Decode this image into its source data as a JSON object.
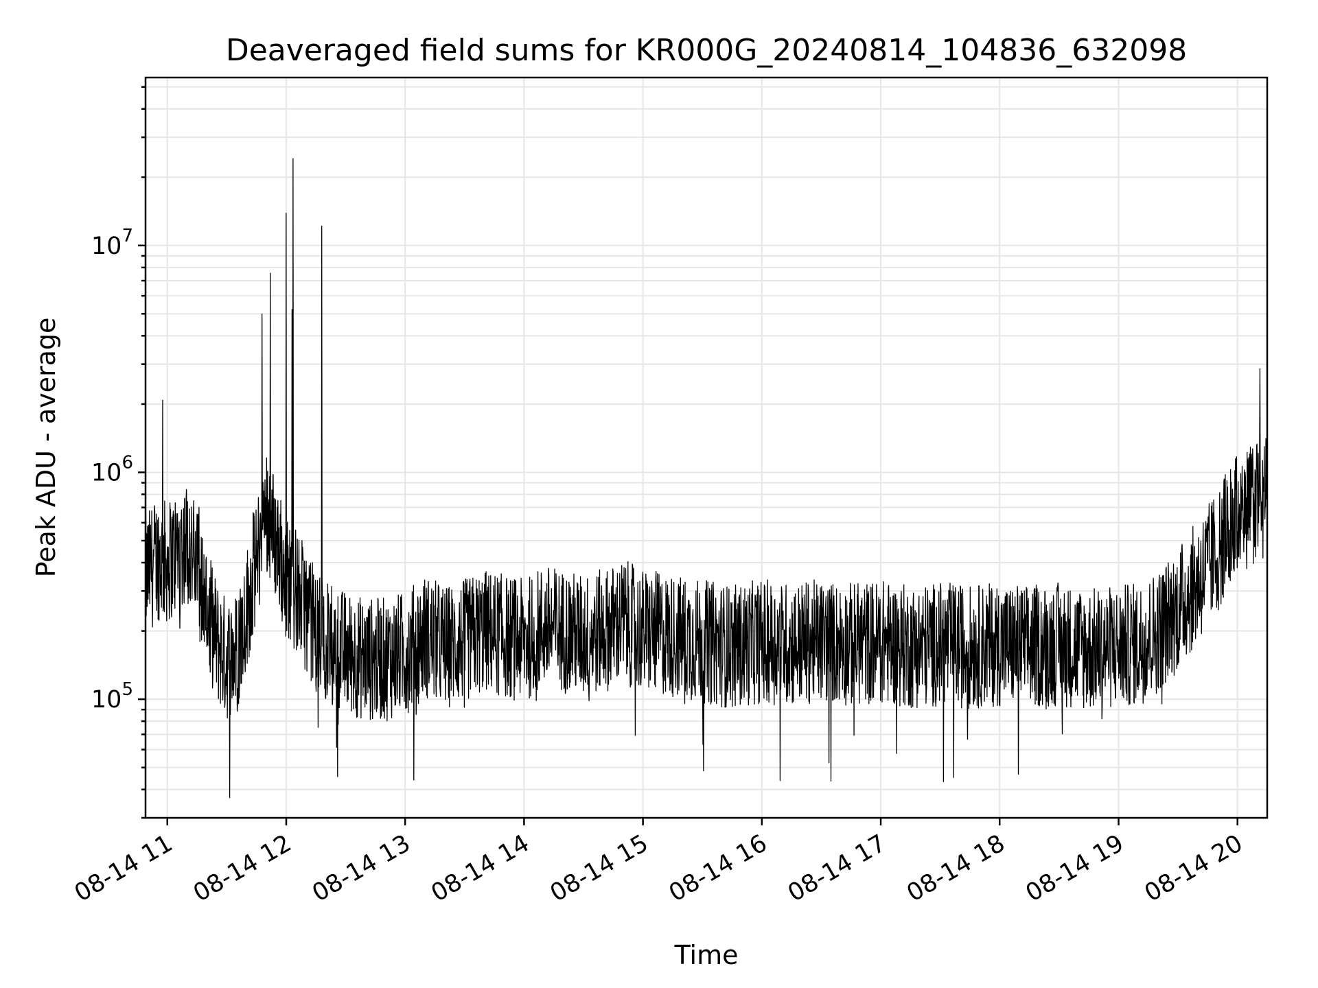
{
  "chart_data": {
    "type": "line",
    "title": "Deaveraged field sums for KR000G_20240814_104836_632098",
    "xlabel": "Time",
    "ylabel": "Peak ADU - average",
    "yscale": "log",
    "ylim": [
      30000,
      55000000
    ],
    "xlim": [
      "2024-08-14 10:49",
      "2024-08-14 20:15"
    ],
    "grid": true,
    "x_ticks": [
      {
        "time": "2024-08-14 11:00",
        "label": "08-14 11"
      },
      {
        "time": "2024-08-14 12:00",
        "label": "08-14 12"
      },
      {
        "time": "2024-08-14 13:00",
        "label": "08-14 13"
      },
      {
        "time": "2024-08-14 14:00",
        "label": "08-14 14"
      },
      {
        "time": "2024-08-14 15:00",
        "label": "08-14 15"
      },
      {
        "time": "2024-08-14 16:00",
        "label": "08-14 16"
      },
      {
        "time": "2024-08-14 17:00",
        "label": "08-14 17"
      },
      {
        "time": "2024-08-14 18:00",
        "label": "08-14 18"
      },
      {
        "time": "2024-08-14 19:00",
        "label": "08-14 19"
      },
      {
        "time": "2024-08-14 20:00",
        "label": "08-14 20"
      }
    ],
    "y_ticks": [
      {
        "value": 100000,
        "base": "10",
        "exp": "5"
      },
      {
        "value": 1000000,
        "base": "10",
        "exp": "6"
      },
      {
        "value": 10000000,
        "base": "10",
        "exp": "7"
      }
    ],
    "series": [
      {
        "color": "#000000",
        "x": [
          "2024-08-14 10:49",
          "2024-08-14 10:55",
          "2024-08-14 11:00",
          "2024-08-14 11:05",
          "2024-08-14 11:10",
          "2024-08-14 11:15",
          "2024-08-14 11:20",
          "2024-08-14 11:25",
          "2024-08-14 11:30",
          "2024-08-14 11:35",
          "2024-08-14 11:40",
          "2024-08-14 11:45",
          "2024-08-14 11:50",
          "2024-08-14 11:55",
          "2024-08-14 12:00",
          "2024-08-14 12:05",
          "2024-08-14 12:10",
          "2024-08-14 12:15",
          "2024-08-14 12:20",
          "2024-08-14 12:25",
          "2024-08-14 12:30",
          "2024-08-14 12:40",
          "2024-08-14 12:50",
          "2024-08-14 13:00",
          "2024-08-14 13:10",
          "2024-08-14 13:20",
          "2024-08-14 13:30",
          "2024-08-14 13:40",
          "2024-08-14 13:50",
          "2024-08-14 14:00",
          "2024-08-14 14:10",
          "2024-08-14 14:20",
          "2024-08-14 14:30",
          "2024-08-14 14:40",
          "2024-08-14 14:50",
          "2024-08-14 15:00",
          "2024-08-14 15:15",
          "2024-08-14 15:30",
          "2024-08-14 15:45",
          "2024-08-14 16:00",
          "2024-08-14 16:15",
          "2024-08-14 16:30",
          "2024-08-14 16:45",
          "2024-08-14 17:00",
          "2024-08-14 17:15",
          "2024-08-14 17:30",
          "2024-08-14 17:45",
          "2024-08-14 18:00",
          "2024-08-14 18:15",
          "2024-08-14 18:30",
          "2024-08-14 18:45",
          "2024-08-14 19:00",
          "2024-08-14 19:10",
          "2024-08-14 19:20",
          "2024-08-14 19:30",
          "2024-08-14 19:40",
          "2024-08-14 19:50",
          "2024-08-14 19:55",
          "2024-08-14 20:00",
          "2024-08-14 20:05",
          "2024-08-14 20:10",
          "2024-08-14 20:15"
        ],
        "y": [
          350000,
          420000,
          400000,
          450000,
          500000,
          380000,
          250000,
          180000,
          150000,
          160000,
          250000,
          400000,
          700000,
          500000,
          350000,
          300000,
          250000,
          200000,
          180000,
          170000,
          160000,
          150000,
          150000,
          160000,
          190000,
          170000,
          180000,
          200000,
          190000,
          180000,
          210000,
          200000,
          190000,
          200000,
          220000,
          200000,
          190000,
          180000,
          170000,
          180000,
          175000,
          180000,
          175000,
          180000,
          170000,
          175000,
          170000,
          175000,
          170000,
          175000,
          165000,
          170000,
          175000,
          200000,
          250000,
          330000,
          450000,
          550000,
          650000,
          700000,
          750000,
          750000
        ]
      }
    ]
  }
}
